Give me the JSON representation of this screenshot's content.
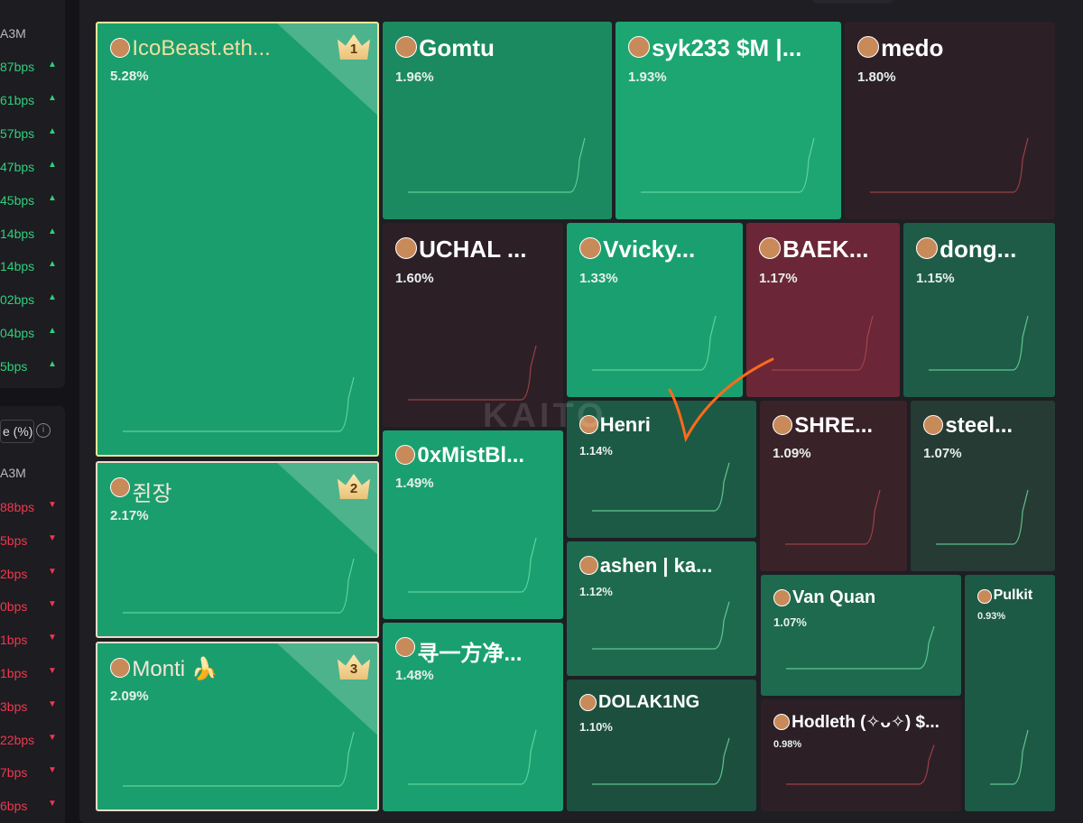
{
  "sidebar_top": {
    "header": "A3M",
    "rows": [
      "87bps",
      "61bps",
      "57bps",
      "47bps",
      "45bps",
      "14bps",
      "14bps",
      "02bps",
      "04bps",
      "5bps"
    ]
  },
  "sidebar_bottom": {
    "title": "e (%)",
    "header": "A3M",
    "rows": [
      "88bps",
      "5bps",
      "2bps",
      "0bps",
      "1bps",
      "1bps",
      "3bps",
      "22bps",
      "7bps",
      "6bps"
    ]
  },
  "watermark": "KAITO",
  "tiles": [
    {
      "name": "IcoBeast.eth...",
      "share": "5.28%",
      "rank": "1"
    },
    {
      "name": "쥔장",
      "share": "2.17%",
      "rank": "2"
    },
    {
      "name": "Monti 🍌",
      "share": "2.09%",
      "rank": "3"
    },
    {
      "name": "Gomtu",
      "share": "1.96%"
    },
    {
      "name": "syk233 $M |...",
      "share": "1.93%"
    },
    {
      "name": "medo",
      "share": "1.80%"
    },
    {
      "name": "UCHAL ...",
      "share": "1.60%"
    },
    {
      "name": "Vvicky...",
      "share": "1.33%"
    },
    {
      "name": "BAEK...",
      "share": "1.17%"
    },
    {
      "name": "dong...",
      "share": "1.15%"
    },
    {
      "name": "0xMistBl...",
      "share": "1.49%"
    },
    {
      "name": "寻一方净...",
      "share": "1.48%"
    },
    {
      "name": "Henri",
      "share": "1.14%"
    },
    {
      "name": "SHRE...",
      "share": "1.09%"
    },
    {
      "name": "steel...",
      "share": "1.07%"
    },
    {
      "name": "ashen | ka...",
      "share": "1.12%"
    },
    {
      "name": "Van Quan",
      "share": "1.07%"
    },
    {
      "name": "Pulkit",
      "share": "0.93%"
    },
    {
      "name": "DOLAK1NG",
      "share": "1.10%"
    },
    {
      "name": "Hodleth (✧ᴗ✧) $...",
      "share": "0.98%"
    }
  ]
}
